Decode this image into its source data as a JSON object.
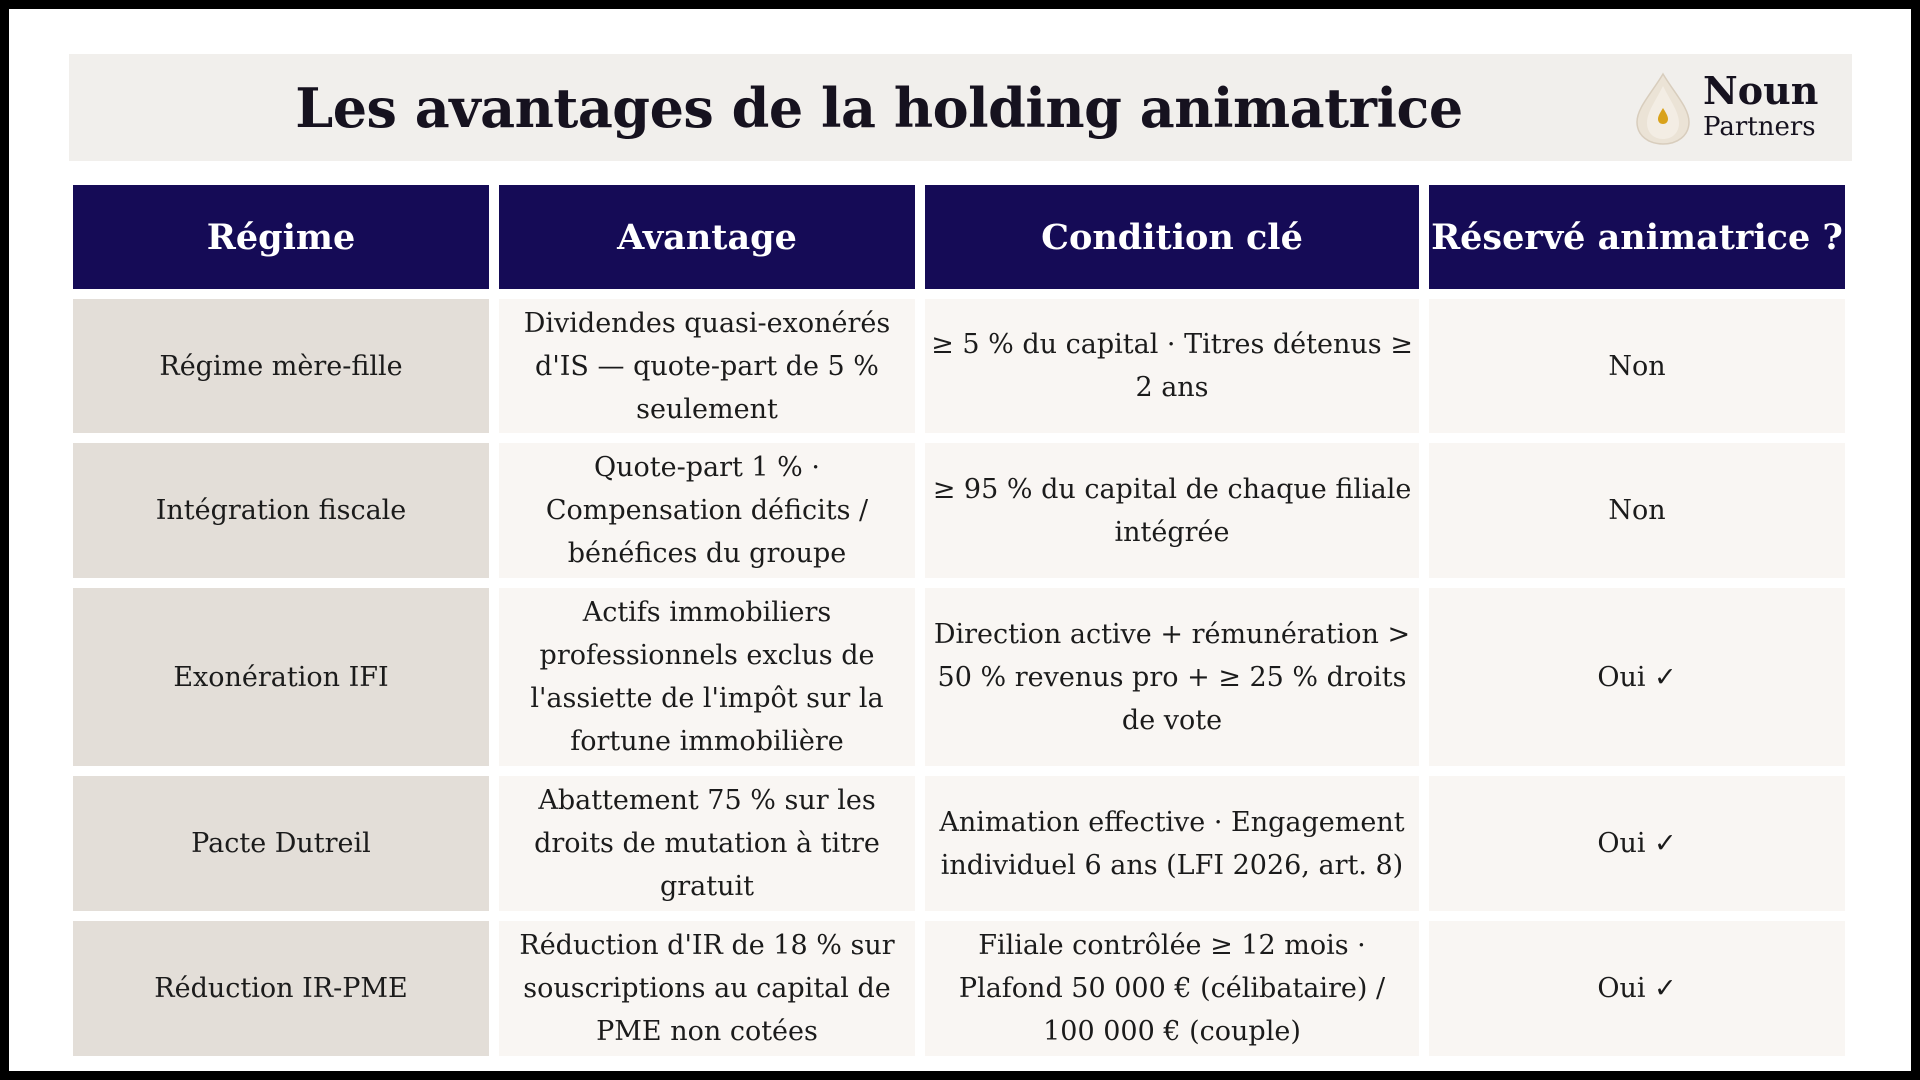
{
  "slide": {
    "title": "Les avantages de la holding animatrice",
    "logo": {
      "word1": "Noun",
      "word2": "Partners",
      "icon": "drop-icon"
    }
  },
  "table": {
    "headers": [
      "Régime",
      "Avantage",
      "Condition clé",
      "Réservé animatrice ?"
    ],
    "rows": [
      [
        "Régime mère-fille",
        "Dividendes quasi-exonérés d'IS — quote-part de 5 % seulement",
        "≥ 5 % du capital · Titres détenus ≥ 2 ans",
        "Non"
      ],
      [
        "Intégration fiscale",
        "Quote-part 1 % · Compensation déficits / bénéfices du groupe",
        "≥ 95 % du capital de chaque filiale intégrée",
        "Non"
      ],
      [
        "Exonération IFI",
        "Actifs immobiliers professionnels exclus de l'assiette de l'impôt sur la fortune immobilière",
        "Direction active + rémunération > 50 % revenus pro + ≥ 25 % droits de vote",
        "Oui ✓"
      ],
      [
        "Pacte Dutreil",
        "Abattement 75 % sur les droits de mutation à titre gratuit",
        "Animation effective · Engagement individuel 6 ans (LFI 2026, art. 8)",
        "Oui ✓"
      ],
      [
        "Réduction IR-PME",
        "Réduction d'IR de 18 % sur souscriptions au capital de PME non cotées",
        "Filiale contrôlée ≥ 12 mois · Plafond 50 000 € (célibataire) / 100 000 € (couple)",
        "Oui ✓"
      ]
    ]
  },
  "colors": {
    "header_bg": "#150b56",
    "first_col_bg": "#e3ded8",
    "cell_bg": "#f9f6f3",
    "title_bar_bg": "#f1efec",
    "logo_accent": "#d9a21b"
  }
}
